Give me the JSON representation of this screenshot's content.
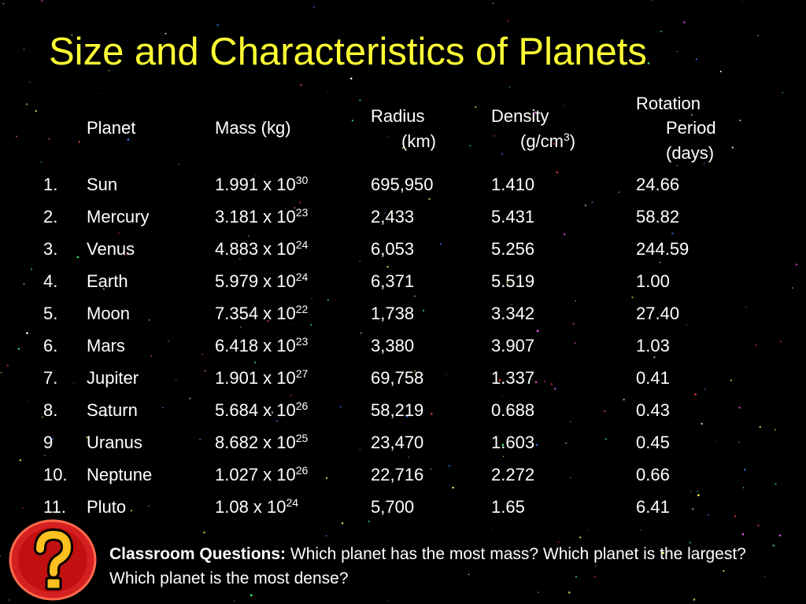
{
  "title": "Size and Characteristics of Planets",
  "table": {
    "header": {
      "planet": "Planet",
      "mass": "Mass (kg)",
      "radius": [
        "Radius",
        "(km)"
      ],
      "density": {
        "line1": "Density",
        "line2": "(g/cm",
        "sup": "3",
        "close": ")"
      },
      "rotation": [
        "Rotation",
        "Period",
        "(days)"
      ]
    },
    "rows": [
      {
        "number": "1.",
        "planet": "Sun",
        "mass_base": "1.991 x 10",
        "mass_exp": "30",
        "radius": "695,950",
        "density": "1.410",
        "rotation": "24.66"
      },
      {
        "number": "2.",
        "planet": "Mercury",
        "mass_base": "3.181 x 10",
        "mass_exp": "23",
        "radius": "2,433",
        "density": "5.431",
        "rotation": "58.82"
      },
      {
        "number": "3.",
        "planet": "Venus",
        "mass_base": "4.883 x 10",
        "mass_exp": "24",
        "radius": "6,053",
        "density": "5.256",
        "rotation": "244.59"
      },
      {
        "number": "4.",
        "planet": "Earth",
        "mass_base": "5.979 x 10",
        "mass_exp": "24",
        "radius": "6,371",
        "density": "5.519",
        "rotation": "1.00"
      },
      {
        "number": "5.",
        "planet": "Moon",
        "mass_base": "7.354 x 10",
        "mass_exp": "22",
        "radius": "1,738",
        "density": "3.342",
        "rotation": "27.40"
      },
      {
        "number": "6.",
        "planet": "Mars",
        "mass_base": "6.418 x 10",
        "mass_exp": "23",
        "radius": "3,380",
        "density": "3.907",
        "rotation": "1.03"
      },
      {
        "number": "7.",
        "planet": "Jupiter",
        "mass_base": "1.901 x 10",
        "mass_exp": "27",
        "radius": "69,758",
        "density": "1.337",
        "rotation": "0.41"
      },
      {
        "number": "8.",
        "planet": "Saturn",
        "mass_base": "5.684 x 10",
        "mass_exp": "26",
        "radius": "58,219",
        "density": "0.688",
        "rotation": "0.43"
      },
      {
        "number": "9",
        "planet": "Uranus",
        "mass_base": "8.682 x 10",
        "mass_exp": "25",
        "radius": "23,470",
        "density": "1.603",
        "rotation": "0.45"
      },
      {
        "number": "10.",
        "planet": "Neptune",
        "mass_base": "1.027 x 10",
        "mass_exp": "26",
        "radius": "22,716",
        "density": "2.272",
        "rotation": "0.66"
      },
      {
        "number": "11.",
        "planet": "Pluto",
        "mass_base": "1.08 x 10",
        "mass_exp": "24",
        "radius": "5,700",
        "density": "1.65",
        "rotation": "6.41"
      }
    ]
  },
  "question": {
    "label": "Classroom Questions:",
    "text": "Which planet has the most mass? Which planet is the largest? Which planet is the most dense?"
  }
}
